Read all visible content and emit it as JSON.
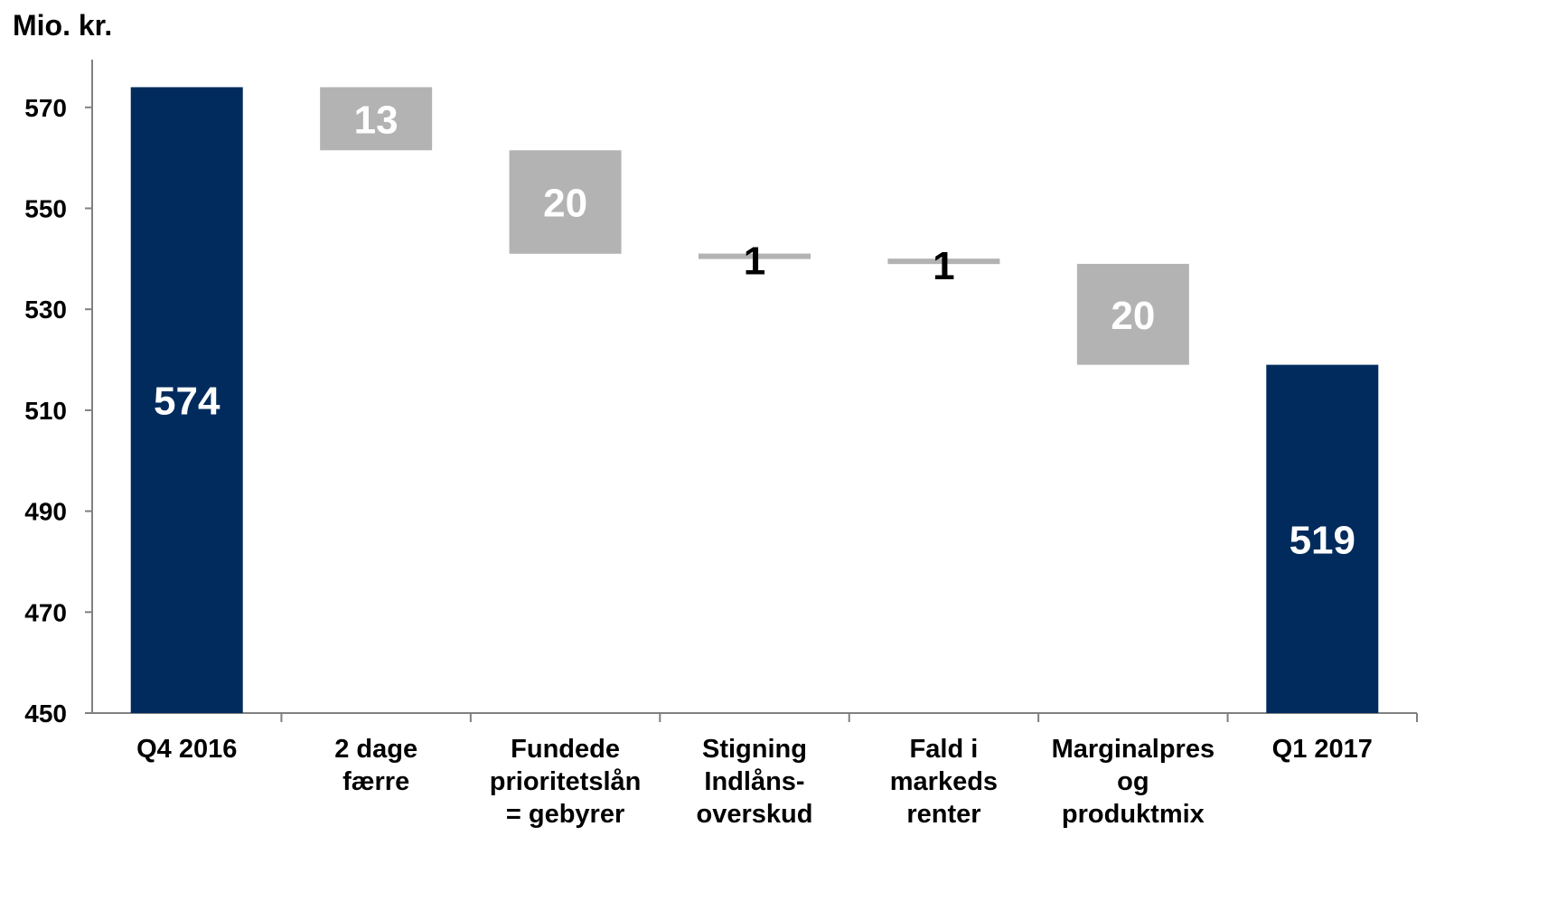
{
  "chart_data": {
    "type": "bar",
    "subtype": "waterfall",
    "unit_label": "Mio. kr.",
    "ylim": [
      450,
      580
    ],
    "yticks": [
      450,
      470,
      490,
      510,
      530,
      550,
      570
    ],
    "grid": false,
    "colors": {
      "total": "#002b5c",
      "change": "#b3b3b3",
      "axis": "#808080"
    },
    "categories": [
      [
        "Q4 2016"
      ],
      [
        "2 dage",
        "færre"
      ],
      [
        "Fundede",
        "prioritetslån",
        "= gebyrer"
      ],
      [
        "Stigning",
        "Indlåns-",
        "overskud"
      ],
      [
        "Fald i",
        "markeds",
        "renter"
      ],
      [
        "Marginalpres",
        "og",
        "produktmix"
      ],
      [
        "Q1 2017"
      ]
    ],
    "bars": [
      {
        "kind": "total",
        "start": 450,
        "end": 574,
        "label": "574",
        "label_color": "#ffffff"
      },
      {
        "kind": "change",
        "start": 574,
        "end": 561.5,
        "label": "13",
        "label_color": "#ffffff"
      },
      {
        "kind": "change",
        "start": 561.5,
        "end": 541,
        "label": "20",
        "label_color": "#ffffff"
      },
      {
        "kind": "change",
        "start": 541,
        "end": 540,
        "label": "1",
        "label_color": "#000000"
      },
      {
        "kind": "change",
        "start": 540,
        "end": 539,
        "label": "1",
        "label_color": "#000000"
      },
      {
        "kind": "change",
        "start": 539,
        "end": 519,
        "label": "20",
        "label_color": "#ffffff"
      },
      {
        "kind": "total",
        "start": 450,
        "end": 519,
        "label": "519",
        "label_color": "#ffffff"
      }
    ]
  }
}
